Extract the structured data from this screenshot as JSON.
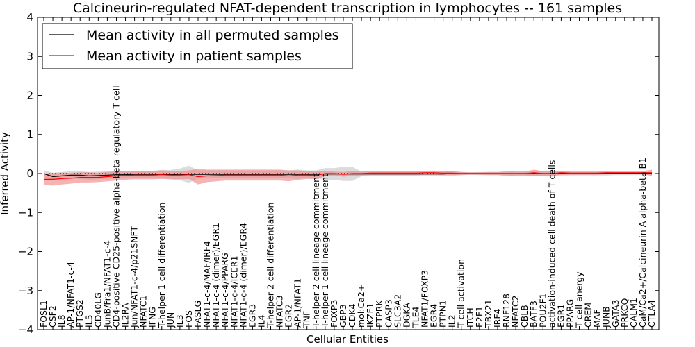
{
  "chart_data": {
    "type": "line",
    "title": "Calcineurin-regulated NFAT-dependent transcription in lymphocytes -- 161 samples",
    "xlabel": "Cellular Entities",
    "ylabel": "Inferred Activity",
    "ylim": [
      -4,
      4
    ],
    "yticks": [
      -4,
      -3,
      -2,
      -1,
      0,
      1,
      2,
      3,
      4
    ],
    "ytick_labels": [
      "−4",
      "−3",
      "−2",
      "−1",
      "0",
      "1",
      "2",
      "3",
      "4"
    ],
    "grid": false,
    "baseline": 0,
    "legend_position": "top-left",
    "categories": [
      "FOSL1",
      "CSF2",
      "IL8",
      "AP-1/NFAT1-c-4",
      "PTGS2",
      "IL5",
      "CD40LG",
      "JunB/Fra1/NFAT1-c-4",
      "CD4-positive CD25-positive alpha-beta regulatory T cell",
      "IL2RA",
      "Jun/NFAT1-c-4/p21SNFT",
      "NFATC1",
      "IFNG",
      "T-helper 1 cell differentiation",
      "JUN",
      "IL3",
      "FOS",
      "FASLG",
      "NFAT1-c-4/MAF/IRF4",
      "NFAT1-c-4 (dimer)/EGR1",
      "NFAT1-c-4/PPARG",
      "NFAT1-c-4/ICER1",
      "NFAT1-c-4 (dimer)/EGR4",
      "EGR3",
      "IL4",
      "T-helper 2 cell differentiation",
      "NFATC3",
      "EGR2",
      "AP-1/NFAT1",
      "TNF",
      "T-helper 2 cell lineage commitment",
      "T-helper 1 cell lineage commitment",
      "FOXP3",
      "GBP3",
      "CDK4",
      "mol:Ca2+",
      "IKZF1",
      "PTPRK",
      "CASP3",
      "SLC3A2",
      "DGKA",
      "TLE4",
      "NFAT1/FOXP3",
      "EGR4",
      "PTPN1",
      "IL2",
      "T cell activation",
      "ITCH",
      "E2F1",
      "TBX21",
      "IRF4",
      "RNF128",
      "NFATC2",
      "CBLB",
      "BATF3",
      "POU2F1",
      "activation-induced cell death of T cells",
      "EGR1",
      "PPARG",
      "T cell anergy",
      "CREM",
      "MAF",
      "JUNB",
      "GATA3",
      "PRKCQ",
      "CALM1",
      "CaM/Ca2+/Calcineurin A alpha-beta B1",
      "CTLA4"
    ],
    "series": [
      {
        "name": "Mean activity in all permuted samples",
        "color": "#000000",
        "band_color": "#bfbfbf",
        "values": [
          0.0,
          -0.08,
          -0.06,
          -0.04,
          -0.04,
          -0.06,
          -0.05,
          -0.04,
          -0.03,
          -0.03,
          -0.02,
          -0.02,
          -0.02,
          -0.01,
          -0.03,
          -0.02,
          -0.02,
          -0.02,
          -0.02,
          -0.02,
          -0.02,
          -0.02,
          -0.02,
          -0.02,
          -0.02,
          -0.02,
          -0.02,
          -0.02,
          -0.02,
          -0.02,
          -0.02,
          -0.01,
          -0.01,
          -0.01,
          -0.01,
          -0.01,
          -0.01,
          -0.01,
          -0.01,
          -0.01,
          -0.01,
          -0.01,
          -0.01,
          -0.01,
          -0.01,
          0.0,
          0.0,
          0.0,
          0.0,
          0.0,
          0.0,
          0.0,
          0.0,
          0.0,
          0.0,
          0.0,
          0.0,
          0.0,
          0.0,
          0.0,
          0.0,
          0.0,
          0.0,
          0.0,
          0.0,
          0.0,
          0.0,
          0.0
        ],
        "band_halfwidth": [
          0.08,
          0.1,
          0.1,
          0.1,
          0.1,
          0.1,
          0.1,
          0.1,
          0.1,
          0.1,
          0.09,
          0.09,
          0.09,
          0.1,
          0.12,
          0.15,
          0.22,
          0.1,
          0.1,
          0.1,
          0.1,
          0.1,
          0.1,
          0.1,
          0.1,
          0.1,
          0.1,
          0.1,
          0.12,
          0.1,
          0.1,
          0.15,
          0.15,
          0.18,
          0.18,
          0.06,
          0.06,
          0.06,
          0.06,
          0.06,
          0.06,
          0.06,
          0.06,
          0.06,
          0.06,
          0.06,
          0.04,
          0.03,
          0.04,
          0.04,
          0.04,
          0.04,
          0.06,
          0.06,
          0.06,
          0.07,
          0.08,
          0.06,
          0.05,
          0.05,
          0.05,
          0.05,
          0.05,
          0.04,
          0.04,
          0.04,
          0.04,
          0.04
        ]
      },
      {
        "name": "Mean activity in patient samples",
        "color": "#ff0000",
        "band_color": "#f08080",
        "values": [
          -0.15,
          -0.15,
          -0.13,
          -0.12,
          -0.1,
          -0.1,
          -0.1,
          -0.08,
          -0.06,
          -0.05,
          -0.04,
          -0.04,
          -0.04,
          -0.03,
          -0.04,
          -0.04,
          -0.03,
          -0.08,
          -0.06,
          -0.05,
          -0.04,
          -0.04,
          -0.04,
          -0.04,
          -0.04,
          -0.04,
          -0.04,
          -0.06,
          -0.04,
          -0.04,
          -0.05,
          0.0,
          0.0,
          -0.02,
          0.0,
          0.0,
          0.01,
          0.01,
          0.01,
          0.01,
          0.01,
          0.01,
          0.02,
          0.02,
          0.01,
          0.01,
          0.0,
          0.0,
          0.0,
          0.0,
          0.0,
          0.0,
          0.0,
          0.0,
          0.02,
          0.0,
          0.0,
          0.02,
          0.01,
          0.01,
          0.01,
          0.01,
          0.02,
          0.02,
          0.02,
          0.02,
          0.02,
          0.02
        ],
        "band_halfwidth": [
          0.15,
          0.16,
          0.15,
          0.14,
          0.13,
          0.13,
          0.12,
          0.12,
          0.12,
          0.11,
          0.11,
          0.11,
          0.11,
          0.11,
          0.11,
          0.11,
          0.11,
          0.2,
          0.16,
          0.15,
          0.14,
          0.14,
          0.14,
          0.14,
          0.14,
          0.14,
          0.14,
          0.14,
          0.12,
          0.1,
          0.1,
          0.06,
          0.05,
          0.06,
          0.06,
          0.05,
          0.05,
          0.05,
          0.05,
          0.05,
          0.05,
          0.05,
          0.05,
          0.05,
          0.05,
          0.05,
          0.04,
          0.03,
          0.03,
          0.04,
          0.04,
          0.06,
          0.05,
          0.05,
          0.08,
          0.06,
          0.06,
          0.05,
          0.04,
          0.04,
          0.04,
          0.04,
          0.04,
          0.04,
          0.04,
          0.04,
          0.04,
          0.08
        ]
      }
    ]
  }
}
